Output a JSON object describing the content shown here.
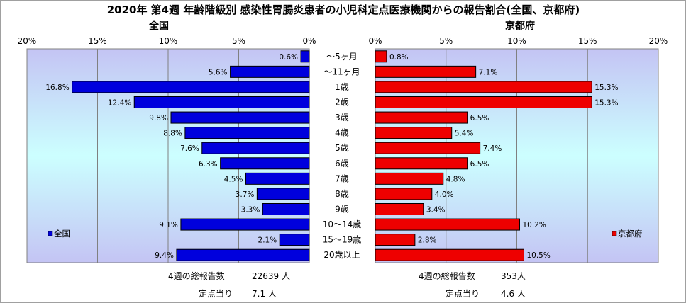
{
  "title": "2020年 第4週 年齢階級別 感染性胃腸炎患者の小児科定点医療機関からの報告割合(全国、京都府)",
  "chart_data": [
    {
      "type": "bar",
      "orientation": "horizontal",
      "subtitle": "全国",
      "xlim": [
        0,
        20
      ],
      "x_reversed": true,
      "ticks": [
        "20%",
        "15%",
        "10%",
        "5%",
        "0%"
      ],
      "categories": [
        "～5ヶ月",
        "～11ヶ月",
        "1歳",
        "2歳",
        "3歳",
        "4歳",
        "5歳",
        "6歳",
        "7歳",
        "8歳",
        "9歳",
        "10～14歳",
        "15～19歳",
        "20歳以上"
      ],
      "series": [
        {
          "name": "全国",
          "color": "#0000dd",
          "values": [
            0.6,
            5.6,
            16.8,
            12.4,
            9.8,
            8.8,
            7.6,
            6.3,
            4.5,
            3.7,
            3.3,
            9.1,
            2.1,
            9.4
          ],
          "labels": [
            "0.6%",
            "5.6%",
            "16.8%",
            "12.4%",
            "9.8%",
            "8.8%",
            "7.6%",
            "6.3%",
            "4.5%",
            "3.7%",
            "3.3%",
            "9.1%",
            "2.1%",
            "9.4%"
          ]
        }
      ],
      "legend": "bottom-left",
      "grid": true
    },
    {
      "type": "bar",
      "orientation": "horizontal",
      "subtitle": "京都府",
      "xlim": [
        0,
        20
      ],
      "ticks": [
        "0%",
        "5%",
        "10%",
        "15%",
        "20%"
      ],
      "categories": [
        "～5ヶ月",
        "～11ヶ月",
        "1歳",
        "2歳",
        "3歳",
        "4歳",
        "5歳",
        "6歳",
        "7歳",
        "8歳",
        "9歳",
        "10～14歳",
        "15～19歳",
        "20歳以上"
      ],
      "series": [
        {
          "name": "京都府",
          "color": "#ee0000",
          "values": [
            0.8,
            7.1,
            15.3,
            15.3,
            6.5,
            5.4,
            7.4,
            6.5,
            4.8,
            4.0,
            3.4,
            10.2,
            2.8,
            10.5
          ],
          "labels": [
            "0.8%",
            "7.1%",
            "15.3%",
            "15.3%",
            "6.5%",
            "5.4%",
            "7.4%",
            "6.5%",
            "4.8%",
            "4.0%",
            "3.4%",
            "10.2%",
            "2.8%",
            "10.5%"
          ]
        }
      ],
      "legend": "bottom-right",
      "grid": true
    }
  ],
  "footer": {
    "left_total_label": "4週の総報告数",
    "left_total_value": "22639 人",
    "left_per_label": "定点当り",
    "left_per_value": "7.1 人",
    "right_total_label": "4週の総報告数",
    "right_total_value": "353人",
    "right_per_label": "定点当り",
    "right_per_value": "4.6 人"
  }
}
